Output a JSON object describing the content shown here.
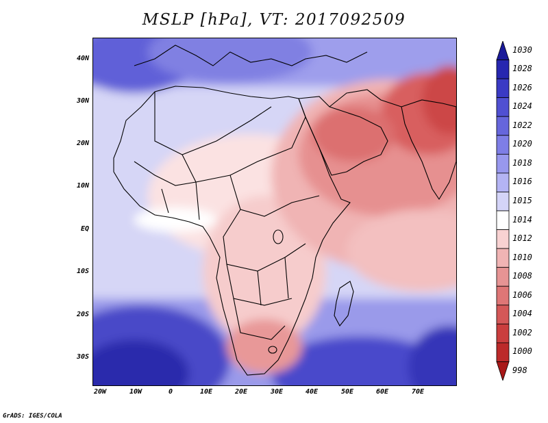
{
  "title": "MSLP [hPa], VT: 2017092509",
  "credit": "GrADS: IGES/COLA",
  "lat_labels": [
    "40N",
    "30N",
    "20N",
    "10N",
    "EQ",
    "10S",
    "20S",
    "30S"
  ],
  "lon_labels": [
    "20W",
    "10W",
    "0",
    "10E",
    "20E",
    "30E",
    "40E",
    "50E",
    "60E",
    "70E"
  ],
  "colorbar": {
    "levels": [
      "1030",
      "1028",
      "1026",
      "1024",
      "1022",
      "1020",
      "1018",
      "1016",
      "1015",
      "1014",
      "1012",
      "1010",
      "1008",
      "1006",
      "1004",
      "1002",
      "1000",
      "998"
    ],
    "colors": [
      "#1a1a99",
      "#2626b0",
      "#3a3ac4",
      "#5050d2",
      "#6666dc",
      "#7e7ee6",
      "#9898ee",
      "#b4b4f4",
      "#d4d4f8",
      "#ffffff",
      "#f8d2d2",
      "#f0b4b4",
      "#e69494",
      "#de7676",
      "#d45858",
      "#ca3e3e",
      "#bc2a2a",
      "#a81818"
    ]
  },
  "map": {
    "region": "Africa / Arabia / Indian Ocean",
    "lon_range": [
      -22,
      80
    ],
    "lat_range": [
      -36,
      45
    ]
  }
}
